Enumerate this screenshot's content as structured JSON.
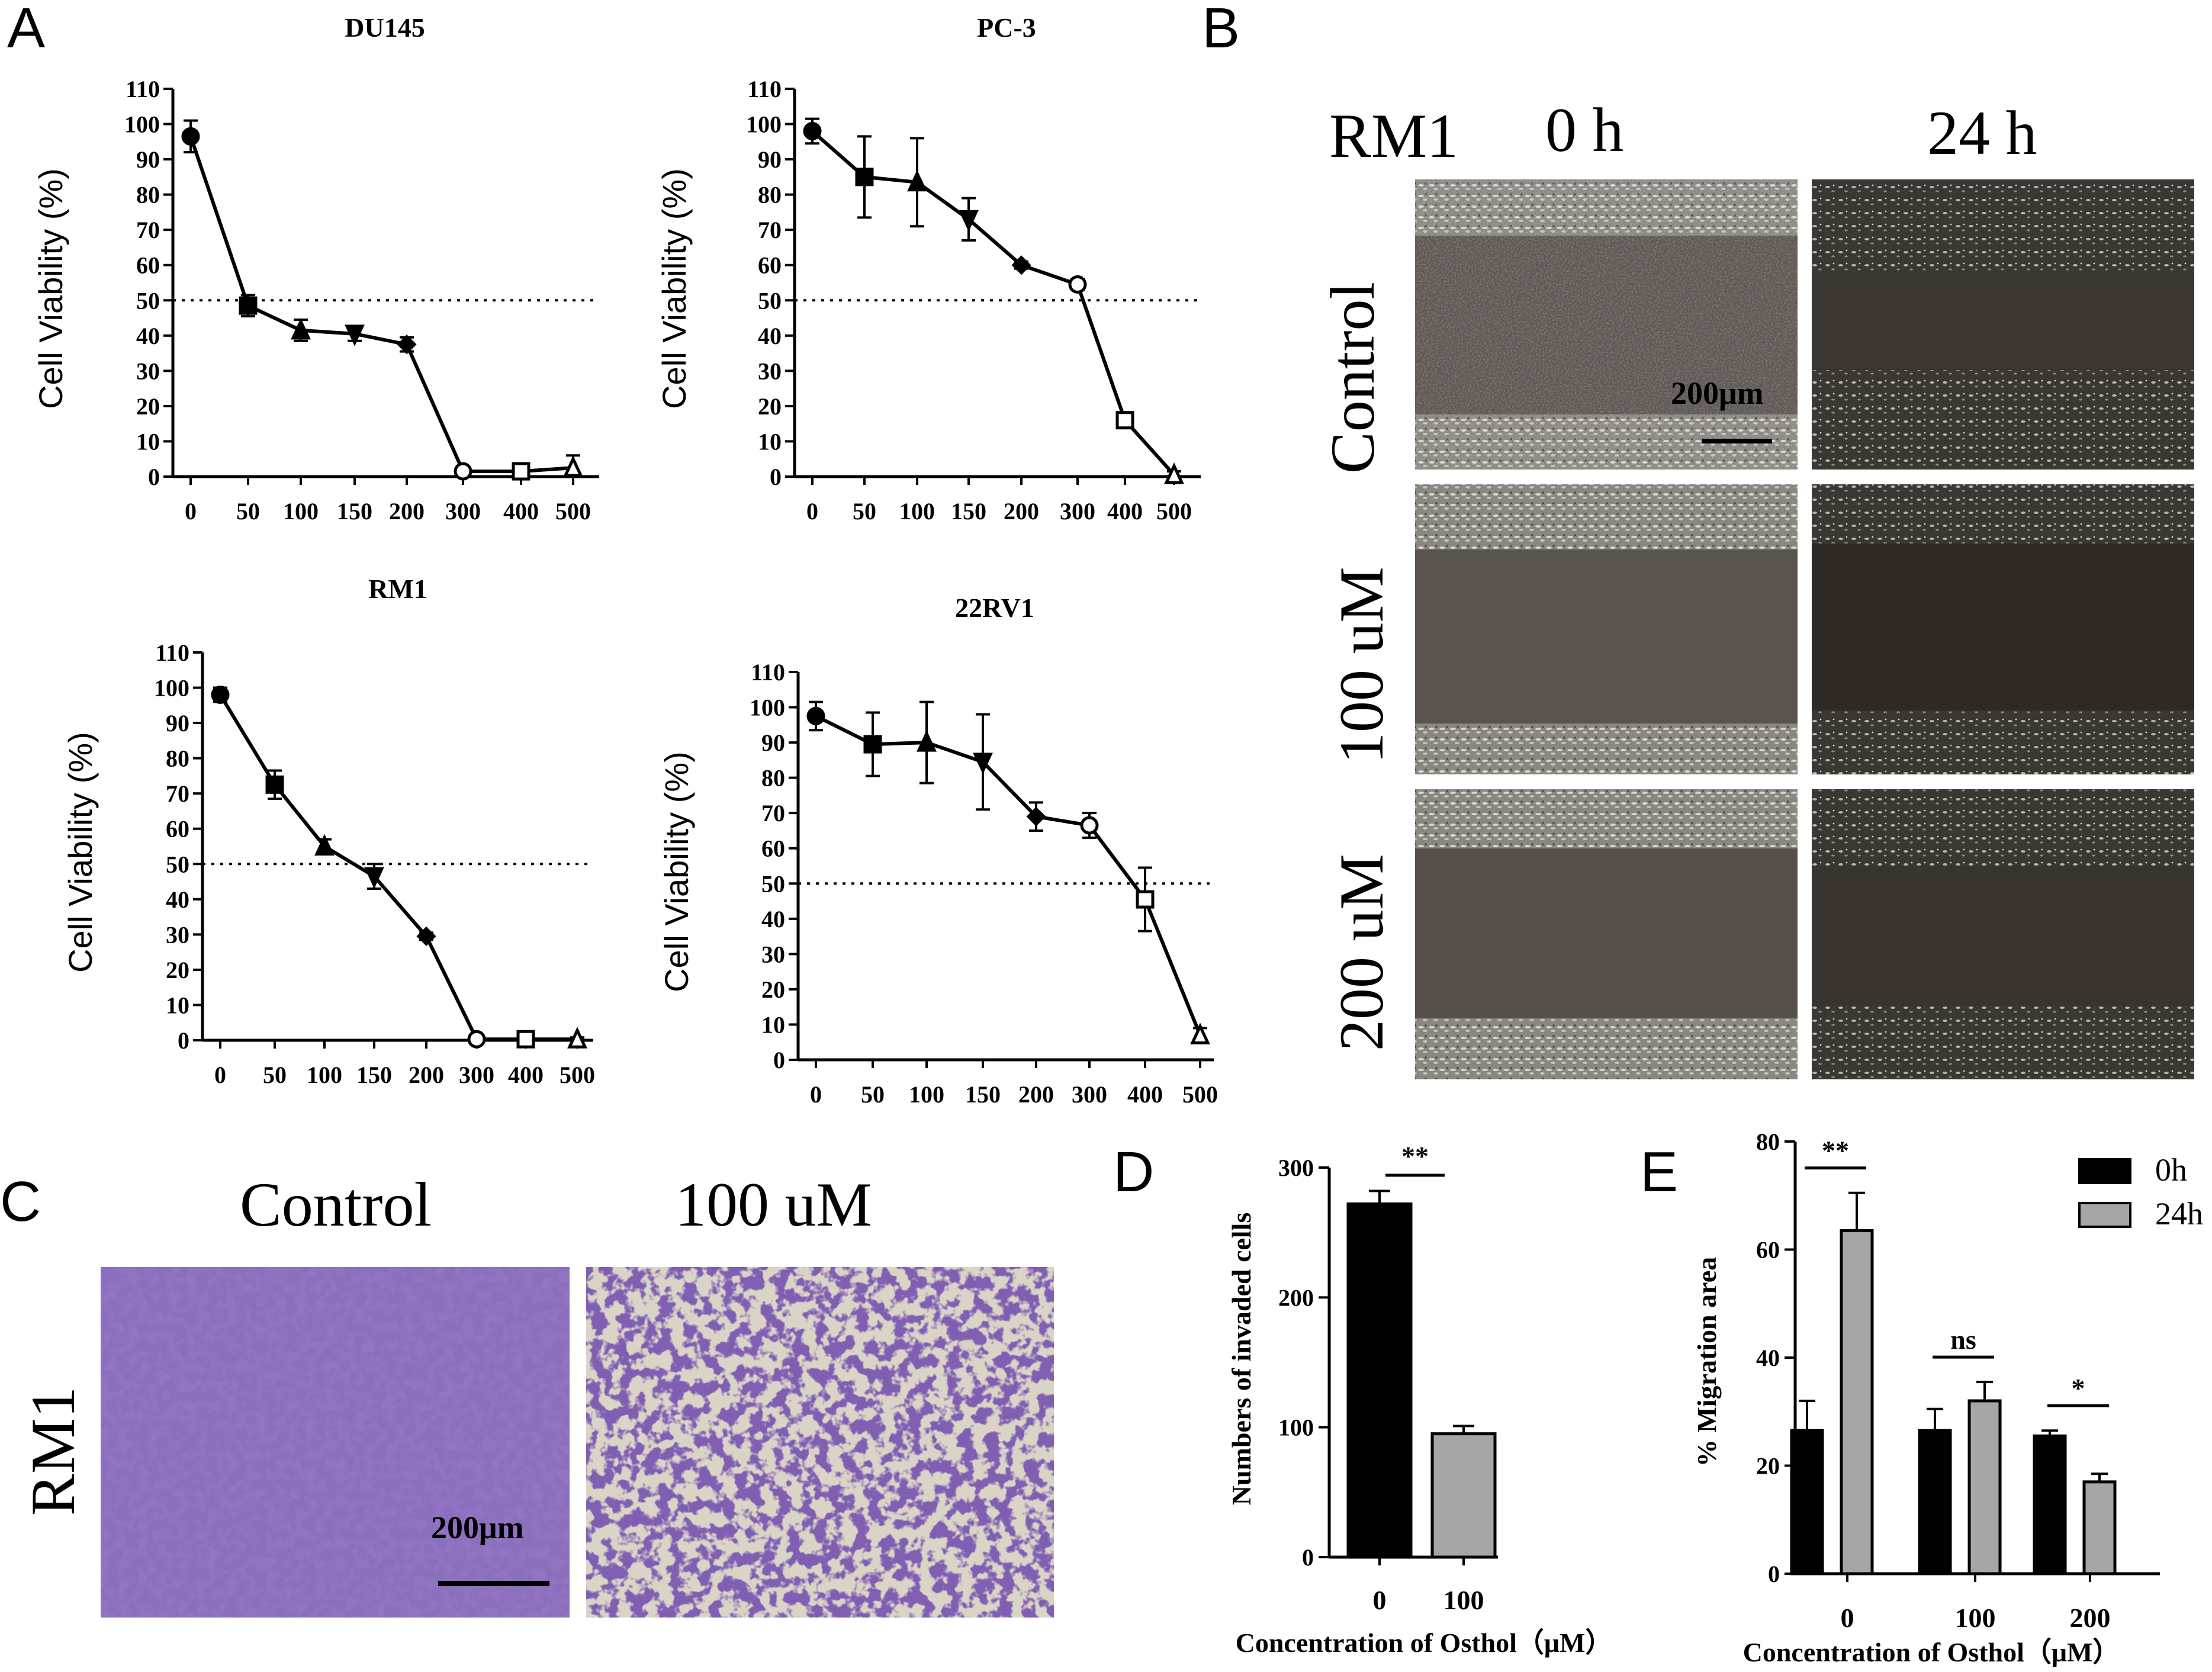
{
  "panels": {
    "A": "A",
    "B": "B",
    "C": "C",
    "D": "D",
    "E": "E"
  },
  "panel_b": {
    "cell_line": "RM1",
    "time_0": "0 h",
    "time_24": "24 h",
    "rows": [
      "Control",
      "100 uM",
      "200 uM"
    ],
    "scale_bar": "200μm"
  },
  "panel_c": {
    "cell_line": "RM1",
    "col_control": "Control",
    "col_100": "100 uM",
    "scale_bar": "200μm"
  },
  "chart_data": [
    {
      "type": "line",
      "title": "DU145",
      "ylabel": "Cell Viability (%)",
      "xlabel": "",
      "categories": [
        "0",
        "50",
        "100",
        "150",
        "200",
        "300",
        "400",
        "500"
      ],
      "values": [
        96.5,
        48.5,
        41.5,
        40.5,
        37.5,
        1.5,
        1.5,
        2.5
      ],
      "errors": [
        4.5,
        3.0,
        3.0,
        2.0,
        2.0,
        1.5,
        2.0,
        3.5
      ],
      "markers": [
        "circle",
        "square",
        "triangle",
        "triangle-down",
        "diamond",
        "open-circle",
        "open-square",
        "open-triangle"
      ],
      "ylim": [
        0,
        110
      ],
      "yticks": [
        0,
        10,
        20,
        30,
        40,
        50,
        60,
        70,
        80,
        90,
        100,
        110
      ],
      "reference_line": 50
    },
    {
      "type": "line",
      "title": "PC-3",
      "ylabel": "Cell Viability (%)",
      "xlabel": "",
      "categories": [
        "0",
        "50",
        "100",
        "150",
        "200",
        "300",
        "400",
        "500"
      ],
      "values": [
        98,
        85,
        83.5,
        73,
        60,
        54.5,
        16,
        0.5
      ],
      "errors": [
        3.5,
        11.5,
        12.5,
        6.0,
        1.0,
        1.5,
        2.0,
        1.0
      ],
      "markers": [
        "circle",
        "square",
        "triangle",
        "triangle-down",
        "diamond",
        "open-circle",
        "open-square",
        "open-triangle"
      ],
      "ylim": [
        0,
        110
      ],
      "yticks": [
        0,
        10,
        20,
        30,
        40,
        50,
        60,
        70,
        80,
        90,
        100,
        110
      ],
      "reference_line": 50
    },
    {
      "type": "line",
      "title": "RM1",
      "ylabel": "Cell Viability (%)",
      "xlabel": "",
      "categories": [
        "0",
        "50",
        "100",
        "150",
        "200",
        "300",
        "400",
        "500"
      ],
      "values": [
        98,
        72.5,
        55,
        46.5,
        29.5,
        0.3,
        0.3,
        0.3
      ],
      "errors": [
        2.0,
        4.0,
        2.0,
        3.5,
        1.0,
        0.5,
        0.5,
        0.5
      ],
      "markers": [
        "circle",
        "square",
        "triangle",
        "triangle-down",
        "diamond",
        "open-circle",
        "open-square",
        "open-triangle"
      ],
      "ylim": [
        0,
        110
      ],
      "yticks": [
        0,
        10,
        20,
        30,
        40,
        50,
        60,
        70,
        80,
        90,
        100,
        110
      ],
      "reference_line": 50
    },
    {
      "type": "line",
      "title": "22RV1",
      "ylabel": "Cell Viability (%)",
      "xlabel": "",
      "categories": [
        "0",
        "50",
        "100",
        "150",
        "200",
        "300",
        "400",
        "500"
      ],
      "values": [
        97.5,
        89.5,
        90,
        84.5,
        69,
        66.5,
        45.5,
        7
      ],
      "errors": [
        4.0,
        9.0,
        11.5,
        13.5,
        4.0,
        3.5,
        9.0,
        2.0
      ],
      "markers": [
        "circle",
        "square",
        "triangle",
        "triangle-down",
        "diamond",
        "open-circle",
        "open-square",
        "open-triangle"
      ],
      "ylim": [
        0,
        110
      ],
      "yticks": [
        0,
        10,
        20,
        30,
        40,
        50,
        60,
        70,
        80,
        90,
        100,
        110
      ],
      "reference_line": 50
    },
    {
      "type": "bar",
      "title": "",
      "ylabel": "Numbers of invaded cells",
      "xlabel": "Concentration of Osthol（μM）",
      "categories": [
        "0",
        "100"
      ],
      "values": [
        272,
        95
      ],
      "errors": [
        10,
        6
      ],
      "colors": [
        "#000000",
        "#a6a6a6"
      ],
      "ylim": [
        0,
        300
      ],
      "yticks": [
        0,
        100,
        200,
        300
      ],
      "significance": [
        {
          "label": "**",
          "from": 0,
          "to": 1
        }
      ]
    },
    {
      "type": "bar",
      "title": "",
      "ylabel": "% Migration area",
      "xlabel": "Concentration of Osthol（μM）",
      "categories": [
        "0",
        "100",
        "200"
      ],
      "series": [
        {
          "name": "0h",
          "values": [
            26.5,
            26.5,
            25.5
          ],
          "errors": [
            5.5,
            4.0,
            1.0
          ],
          "color": "#000000"
        },
        {
          "name": "24h",
          "values": [
            63.5,
            32,
            17
          ],
          "errors": [
            7.0,
            3.5,
            1.5
          ],
          "color": "#a6a6a6"
        }
      ],
      "ylim": [
        0,
        80
      ],
      "yticks": [
        0,
        20,
        40,
        60,
        80
      ],
      "significance": [
        "**",
        "ns",
        "*"
      ],
      "legend": "top-right"
    }
  ]
}
